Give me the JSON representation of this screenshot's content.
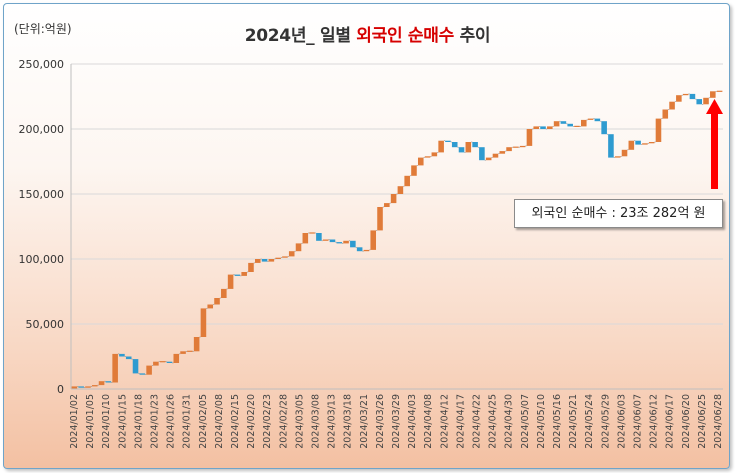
{
  "header": {
    "unit": "(단위:억원)",
    "title_prefix": "2024년_ 일별 ",
    "title_accent": "외국인 순매수",
    "title_suffix": " 추이"
  },
  "annotation": {
    "text": "외국인 순매수 : 23조 282억 원",
    "arrow_color": "#ff0000"
  },
  "colors": {
    "increase": "#e07b39",
    "decrease": "#2e9bd0",
    "grid": "#d9d9d9"
  },
  "chart_data": {
    "type": "waterfall",
    "title": "2024년_ 일별 외국인 순매수 추이",
    "ylabel": "(단위:억원)",
    "ylim": [
      0,
      250000
    ],
    "yticks": [
      0,
      50000,
      100000,
      150000,
      200000,
      250000
    ],
    "ytick_labels": [
      "0",
      "50,000",
      "100,000",
      "150,000",
      "200,000",
      "250,000"
    ],
    "grid": true,
    "x_tick_labels": [
      "2024/01/02",
      "2024/01/05",
      "2024/01/10",
      "2024/01/15",
      "2024/01/18",
      "2024/01/23",
      "2024/01/26",
      "2024/01/31",
      "2024/02/05",
      "2024/02/08",
      "2024/02/15",
      "2024/02/20",
      "2024/02/23",
      "2024/02/28",
      "2024/03/05",
      "2024/03/08",
      "2024/03/13",
      "2024/03/18",
      "2024/03/21",
      "2024/03/26",
      "2024/03/29",
      "2024/04/03",
      "2024/04/08",
      "2024/04/12",
      "2024/04/17",
      "2024/04/22",
      "2024/04/25",
      "2024/04/30",
      "2024/05/07",
      "2024/05/10",
      "2024/05/16",
      "2024/05/21",
      "2024/05/24",
      "2024/05/29",
      "2024/06/03",
      "2024/06/07",
      "2024/06/12",
      "2024/06/17",
      "2024/06/20",
      "2024/06/25",
      "2024/06/28"
    ],
    "cumulative": [
      2000,
      1000,
      2000,
      3000,
      6000,
      5000,
      27000,
      25000,
      23000,
      12000,
      11000,
      18000,
      21000,
      21000,
      20000,
      27000,
      29000,
      29000,
      40000,
      62000,
      65000,
      70000,
      77000,
      88000,
      87000,
      90000,
      97000,
      100000,
      98000,
      100000,
      101000,
      102000,
      106000,
      112000,
      120000,
      120000,
      114000,
      115000,
      113000,
      112000,
      114000,
      109000,
      106000,
      107000,
      122000,
      140000,
      143000,
      150000,
      156000,
      164000,
      172000,
      178000,
      179000,
      182000,
      191000,
      190000,
      186000,
      182000,
      190000,
      186000,
      176000,
      178000,
      181000,
      183000,
      186000,
      186000,
      187000,
      200000,
      202000,
      200000,
      202000,
      206000,
      204000,
      202000,
      202000,
      207000,
      208000,
      206000,
      196000,
      178000,
      179000,
      184000,
      191000,
      188000,
      189000,
      190000,
      208000,
      215000,
      221000,
      226000,
      227000,
      223000,
      219000,
      224000,
      229000,
      229000
    ]
  }
}
